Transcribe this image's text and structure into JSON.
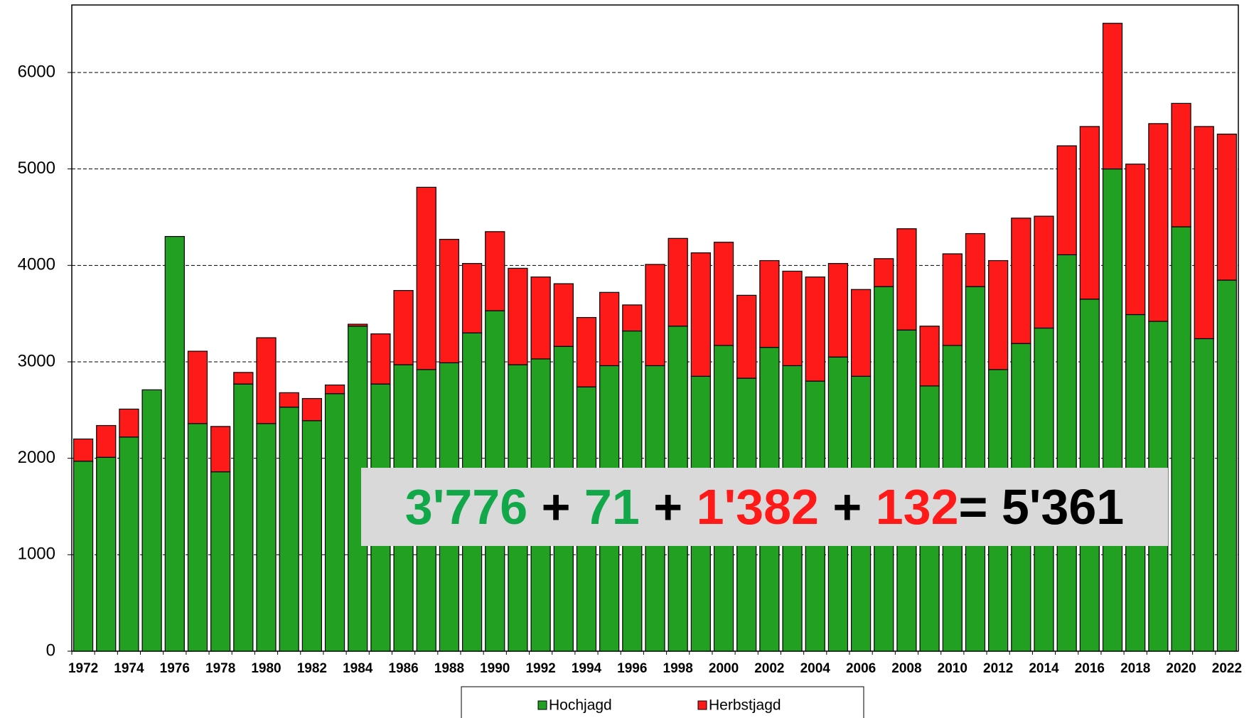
{
  "chart_data": {
    "type": "stacked_bar",
    "categories": [
      "1972",
      null,
      "1974",
      null,
      "1976",
      null,
      "1978",
      null,
      "1980",
      null,
      "1982",
      null,
      "1984",
      null,
      "1986",
      null,
      "1988",
      null,
      "1990",
      null,
      "1992",
      null,
      "1994",
      null,
      "1996",
      null,
      "1998",
      null,
      "2000",
      null,
      "2002",
      null,
      "2004",
      null,
      "2006",
      null,
      "2008",
      null,
      "2010",
      null,
      "2012",
      null,
      "2014",
      null,
      "2016",
      null,
      "2018",
      null,
      "2020",
      null,
      "2022"
    ],
    "series": [
      {
        "name": "Hochjagd",
        "color": "#22a022",
        "values": [
          1970,
          2010,
          2220,
          2710,
          4300,
          2360,
          1860,
          2770,
          2360,
          2530,
          2390,
          2670,
          3370,
          2770,
          2970,
          2920,
          2990,
          3300,
          3530,
          2970,
          3030,
          3160,
          2740,
          2960,
          3320,
          2960,
          3370,
          2850,
          3170,
          2830,
          3150,
          2960,
          2800,
          3050,
          2850,
          3780,
          3330,
          2750,
          3170,
          3780,
          2920,
          3190,
          3350,
          4110,
          3650,
          5000,
          3490,
          3420,
          4400,
          3240,
          3847
        ]
      },
      {
        "name": "Herbstjagd",
        "color": "#ff1a1a",
        "values": [
          230,
          330,
          290,
          0,
          0,
          750,
          470,
          120,
          890,
          150,
          230,
          90,
          20,
          520,
          770,
          1890,
          1280,
          720,
          820,
          1000,
          850,
          650,
          720,
          760,
          270,
          1050,
          910,
          1280,
          1070,
          860,
          900,
          980,
          1080,
          970,
          900,
          290,
          1050,
          620,
          950,
          550,
          1130,
          1300,
          1160,
          1130,
          1790,
          1510,
          1560,
          2050,
          1280,
          2200,
          1514
        ]
      }
    ],
    "ylim": [
      0,
      6700
    ],
    "yticks": [
      0,
      1000,
      2000,
      3000,
      4000,
      5000,
      6000
    ],
    "grid": true,
    "annotation": [
      {
        "text": "3'776",
        "color": "#12a84a"
      },
      {
        "text": " + ",
        "color": "#000000"
      },
      {
        "text": "71",
        "color": "#12a84a"
      },
      {
        "text": " + ",
        "color": "#000000"
      },
      {
        "text": "1'382",
        "color": "#ff1a1a"
      },
      {
        "text": " + ",
        "color": "#000000"
      },
      {
        "text": "132",
        "color": "#ff1a1a"
      },
      {
        "text": "= 5'361",
        "color": "#000000"
      }
    ]
  }
}
